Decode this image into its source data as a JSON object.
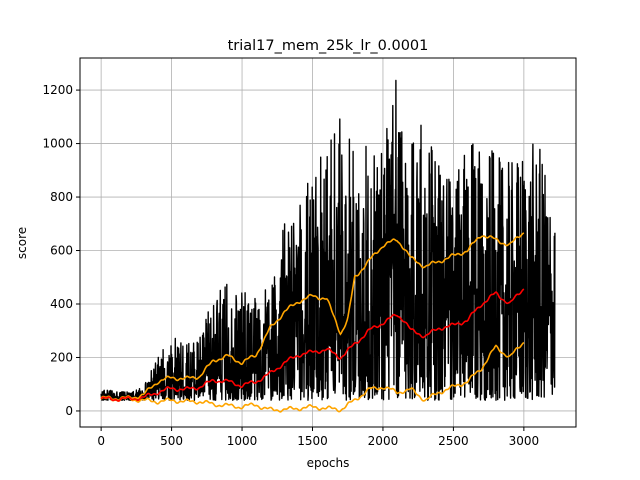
{
  "chart_data": {
    "type": "line",
    "title": "trial17_mem_25k_lr_0.0001",
    "xlabel": "epochs",
    "ylabel": "score",
    "xlim": [
      -150,
      3370
    ],
    "ylim": [
      -60,
      1320
    ],
    "grid": true,
    "xticks": [
      0,
      500,
      1000,
      1500,
      2000,
      2500,
      3000
    ],
    "yticks": [
      0,
      200,
      400,
      600,
      800,
      1000,
      1200
    ],
    "colors": {
      "raw": "#000000",
      "mean": "#ff0000",
      "band": "#ffa500"
    },
    "series": [
      {
        "role": "raw",
        "x_max": 3220,
        "envelope_x": [
          0,
          200,
          300,
          400,
          500,
          600,
          700,
          800,
          900,
          1000,
          1100,
          1200,
          1300,
          1400,
          1500,
          1600,
          1700,
          1800,
          1900,
          2000,
          2100,
          2200,
          2300,
          2400,
          2500,
          2600,
          2700,
          2800,
          2900,
          3000,
          3100,
          3200
        ],
        "envelope_max": [
          80,
          70,
          90,
          200,
          280,
          250,
          300,
          420,
          490,
          450,
          460,
          480,
          700,
          760,
          950,
          1060,
          1140,
          980,
          1000,
          1080,
          1260,
          1120,
          1080,
          960,
          900,
          990,
          1020,
          960,
          930,
          1000,
          1010,
          820
        ],
        "envelope_min": [
          40,
          40,
          40,
          40,
          40,
          40,
          40,
          40,
          40,
          40,
          40,
          40,
          40,
          40,
          40,
          40,
          40,
          40,
          40,
          40,
          40,
          40,
          40,
          40,
          40,
          40,
          40,
          40,
          40,
          40,
          40,
          60
        ]
      },
      {
        "role": "mean",
        "x": [
          0,
          200,
          300,
          400,
          500,
          600,
          700,
          800,
          900,
          1000,
          1100,
          1200,
          1300,
          1400,
          1500,
          1600,
          1700,
          1800,
          1900,
          2000,
          2100,
          2150,
          2200,
          2300,
          2400,
          2500,
          2600,
          2700,
          2800,
          2900,
          3000
        ],
        "y": [
          45,
          45,
          50,
          70,
          85,
          80,
          90,
          115,
          110,
          95,
          110,
          140,
          180,
          210,
          220,
          230,
          200,
          250,
          300,
          330,
          360,
          340,
          300,
          280,
          310,
          320,
          340,
          400,
          440,
          400,
          460
        ]
      },
      {
        "role": "upper",
        "x": [
          0,
          200,
          300,
          400,
          500,
          600,
          700,
          800,
          900,
          1000,
          1100,
          1200,
          1300,
          1400,
          1500,
          1600,
          1700,
          1750,
          1800,
          1900,
          2000,
          2100,
          2150,
          2200,
          2300,
          2400,
          2500,
          2600,
          2700,
          2800,
          2900,
          3000
        ],
        "y": [
          48,
          48,
          60,
          110,
          125,
          120,
          130,
          190,
          205,
          180,
          210,
          310,
          370,
          410,
          430,
          420,
          290,
          340,
          500,
          560,
          620,
          640,
          610,
          570,
          540,
          560,
          580,
          600,
          660,
          640,
          620,
          670
        ]
      },
      {
        "role": "lower",
        "x": [
          0,
          200,
          300,
          400,
          500,
          600,
          700,
          800,
          900,
          1000,
          1100,
          1150,
          1200,
          1300,
          1400,
          1500,
          1600,
          1700,
          1800,
          1900,
          2000,
          2100,
          2200,
          2300,
          2400,
          2500,
          2600,
          2700,
          2800,
          2900,
          3000
        ],
        "y": [
          44,
          44,
          40,
          35,
          40,
          35,
          35,
          25,
          20,
          15,
          25,
          10,
          5,
          5,
          10,
          15,
          10,
          5,
          40,
          80,
          90,
          70,
          80,
          40,
          70,
          90,
          110,
          160,
          240,
          200,
          260
        ]
      }
    ]
  }
}
